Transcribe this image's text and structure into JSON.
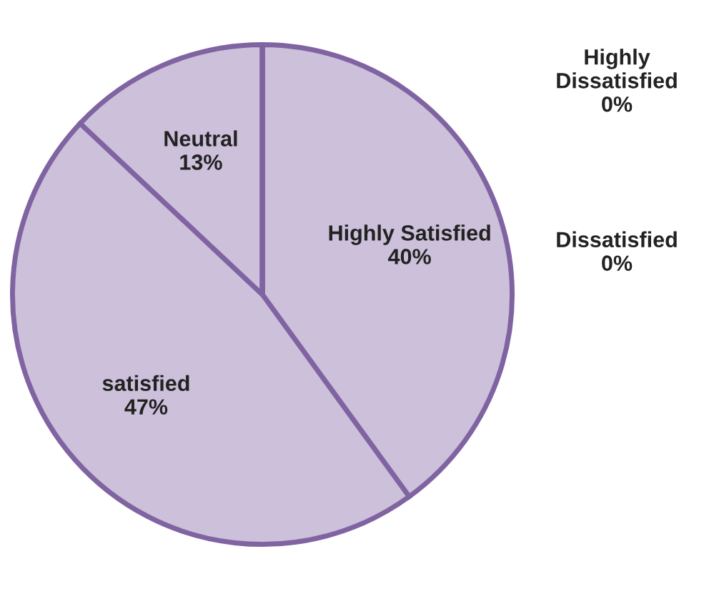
{
  "chart_data": {
    "type": "pie",
    "categories": [
      "Highly Satisfied",
      "satisfied",
      "Neutral",
      "Dissatisfied",
      "Highly Dissatisfied"
    ],
    "values": [
      40,
      47,
      13,
      0,
      0
    ],
    "value_labels": [
      "40%",
      "47%",
      "13%",
      "0%",
      "0%"
    ],
    "colors": [
      "#ccc0da",
      "#ccc0da",
      "#ccc0da",
      "#ccc0da",
      "#ccc0da"
    ],
    "legend": false
  }
}
